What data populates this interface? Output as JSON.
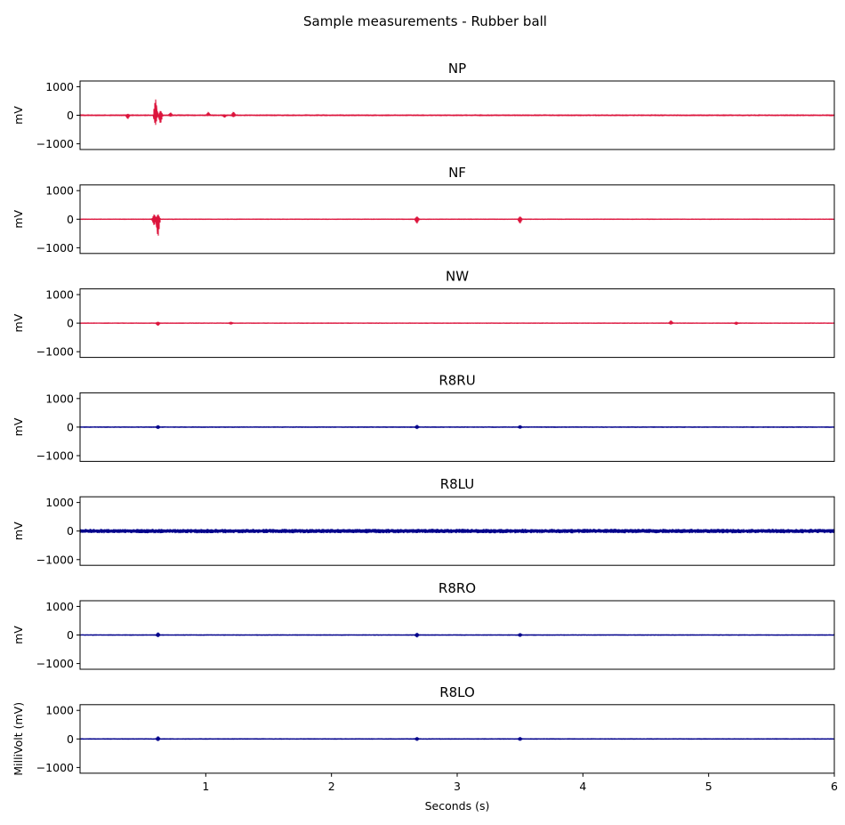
{
  "figure": {
    "suptitle": "Sample measurements - Rubber ball",
    "xlabel": "Seconds (s)"
  },
  "chart_data": {
    "type": "line",
    "xlim": [
      0,
      6
    ],
    "ylim": [
      -1200,
      1200
    ],
    "x_ticks": [
      1,
      2,
      3,
      4,
      5,
      6
    ],
    "y_ticks": [
      1000,
      0,
      -1000
    ],
    "grid": false,
    "legend": "none",
    "colors": {
      "red": "#dc143c",
      "blue": "#00008b"
    },
    "subplots": [
      {
        "title": "NP",
        "ylabel": "mV",
        "color": "#dc143c",
        "noise_amplitude": 18,
        "events": [
          {
            "t": 0.38,
            "min": -130,
            "max": 40
          },
          {
            "t": 0.6,
            "min": -350,
            "max": 580
          },
          {
            "t": 0.64,
            "min": -300,
            "max": 160
          },
          {
            "t": 0.72,
            "min": -40,
            "max": 90
          },
          {
            "t": 1.02,
            "min": -10,
            "max": 110
          },
          {
            "t": 1.15,
            "min": -80,
            "max": 20
          },
          {
            "t": 1.22,
            "min": -60,
            "max": 120
          }
        ]
      },
      {
        "title": "NF",
        "ylabel": "mV",
        "color": "#dc143c",
        "noise_amplitude": 10,
        "events": [
          {
            "t": 0.59,
            "min": -220,
            "max": 170
          },
          {
            "t": 0.62,
            "min": -650,
            "max": 170
          },
          {
            "t": 2.68,
            "min": -150,
            "max": 90
          },
          {
            "t": 3.5,
            "min": -150,
            "max": 90
          }
        ]
      },
      {
        "title": "NW",
        "ylabel": "mV",
        "color": "#dc143c",
        "noise_amplitude": 10,
        "events": [
          {
            "t": 0.62,
            "min": -90,
            "max": 40
          },
          {
            "t": 1.2,
            "min": -40,
            "max": 40
          },
          {
            "t": 4.7,
            "min": -40,
            "max": 90
          },
          {
            "t": 5.22,
            "min": -50,
            "max": 40
          }
        ]
      },
      {
        "title": "R8RU",
        "ylabel": "mV",
        "color": "#00008b",
        "noise_amplitude": 12,
        "events": [
          {
            "t": 0.62,
            "min": -60,
            "max": 60
          },
          {
            "t": 2.68,
            "min": -60,
            "max": 70
          },
          {
            "t": 3.5,
            "min": -50,
            "max": 60
          }
        ]
      },
      {
        "title": "R8LU",
        "ylabel": "mV",
        "color": "#00008b",
        "noise_amplitude": 65,
        "events": []
      },
      {
        "title": "R8RO",
        "ylabel": "mV",
        "color": "#00008b",
        "noise_amplitude": 12,
        "events": [
          {
            "t": 0.62,
            "min": -70,
            "max": 90
          },
          {
            "t": 2.68,
            "min": -80,
            "max": 70
          },
          {
            "t": 3.5,
            "min": -60,
            "max": 60
          }
        ]
      },
      {
        "title": "R8LO",
        "ylabel": "MilliVolt (mV)",
        "color": "#00008b",
        "noise_amplitude": 12,
        "events": [
          {
            "t": 0.62,
            "min": -70,
            "max": 90
          },
          {
            "t": 2.68,
            "min": -60,
            "max": 60
          },
          {
            "t": 3.5,
            "min": -60,
            "max": 60
          }
        ]
      }
    ]
  }
}
